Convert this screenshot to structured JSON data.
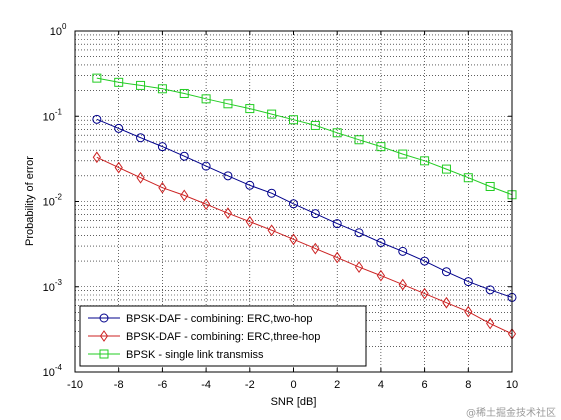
{
  "chart_data": {
    "type": "line",
    "xlabel": "SNR [dB]",
    "ylabel": "Probability of error",
    "xlim": [
      -10,
      10
    ],
    "ylim": [
      0.0001,
      1
    ],
    "yscale": "log",
    "grid": true,
    "legend_position": "bottom-left",
    "x_ticks": [
      -10,
      -8,
      -6,
      -4,
      -2,
      0,
      2,
      4,
      6,
      8,
      10
    ],
    "y_ticks": [
      {
        "base": "10",
        "exp": "0"
      },
      {
        "base": "10",
        "exp": "-1"
      },
      {
        "base": "10",
        "exp": "-2"
      },
      {
        "base": "10",
        "exp": "-3"
      },
      {
        "base": "10",
        "exp": "-4"
      }
    ],
    "x": [
      -9,
      -8,
      -7,
      -6,
      -5,
      -4,
      -3,
      -2,
      -1,
      0,
      1,
      2,
      3,
      4,
      5,
      6,
      7,
      8,
      9,
      10
    ],
    "series": [
      {
        "name": "BPSK-DAF - combining: ERC,two-hop",
        "color": "#00008b",
        "marker": "circle",
        "values": [
          0.092,
          0.072,
          0.056,
          0.044,
          0.034,
          0.026,
          0.02,
          0.0155,
          0.0125,
          0.0094,
          0.0072,
          0.0055,
          0.0043,
          0.0033,
          0.0026,
          0.002,
          0.0015,
          0.00115,
          0.00092,
          0.00075
        ]
      },
      {
        "name": "BPSK-DAF - combining: ERC,three-hop",
        "color": "#cc2222",
        "marker": "diamond",
        "values": [
          0.033,
          0.025,
          0.019,
          0.0145,
          0.0118,
          0.0093,
          0.0073,
          0.0058,
          0.0046,
          0.0036,
          0.0028,
          0.0022,
          0.0017,
          0.00135,
          0.00106,
          0.00083,
          0.00065,
          0.00051,
          0.00037,
          0.00028
        ]
      },
      {
        "name": "BPSK - single link transmiss",
        "color": "#22cc22",
        "marker": "square",
        "values": [
          0.28,
          0.25,
          0.23,
          0.21,
          0.185,
          0.16,
          0.14,
          0.123,
          0.106,
          0.091,
          0.078,
          0.064,
          0.053,
          0.044,
          0.036,
          0.03,
          0.024,
          0.019,
          0.015,
          0.012
        ]
      }
    ]
  },
  "watermark": "@稀土掘金技术社区"
}
